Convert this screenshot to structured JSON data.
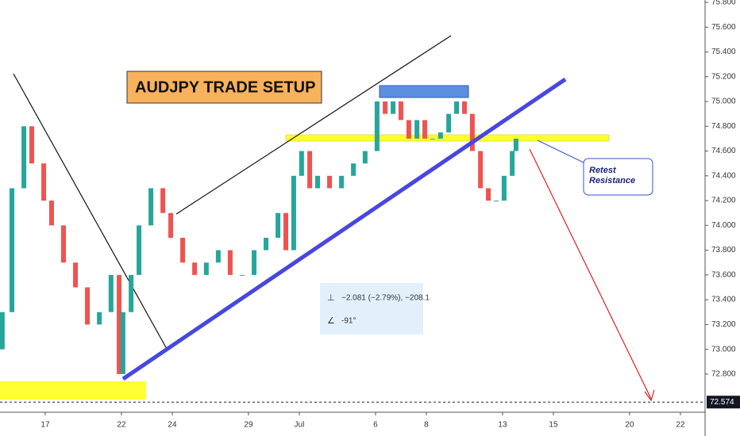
{
  "chart_data": {
    "type": "candlestick",
    "title": "AUDJPY TRADE SETUP",
    "annotations": {
      "callout": "Retest\nResistance",
      "measure_change": "−2.081 (−2.79%), −208.1",
      "measure_angle": "-91°"
    },
    "x": [
      -1.69,
      -1.31,
      -0.84,
      -0.53,
      -0.06,
      0.25,
      0.72,
      1.19,
      1.66,
      2.13,
      2.59,
      2.91,
      3.06,
      3.38,
      3.69,
      4.16,
      4.63,
      4.94,
      5.41,
      5.88,
      6.34,
      6.81,
      7.28,
      7.75,
      8.22,
      8.69,
      9.16,
      9.47,
      9.78,
      10.09,
      10.41,
      10.72,
      11.19,
      11.66,
      12.13,
      12.59,
      13.06,
      13.38,
      13.69,
      14.0,
      14.31,
      14.63,
      14.94,
      15.25,
      15.56,
      15.88,
      16.19,
      16.5,
      16.81,
      17.13,
      17.44,
      17.75,
      18.06,
      18.38,
      18.53
    ],
    "open": [
      73.0,
      73.3,
      74.3,
      74.8,
      74.5,
      74.2,
      74.0,
      73.7,
      73.5,
      73.2,
      73.3,
      73.6,
      72.8,
      73.3,
      73.6,
      74.0,
      74.3,
      74.1,
      73.9,
      73.7,
      73.6,
      73.7,
      73.8,
      73.6,
      73.6,
      73.8,
      73.9,
      74.1,
      73.8,
      74.4,
      74.6,
      74.3,
      74.4,
      74.3,
      74.4,
      74.5,
      74.6,
      75.0,
      74.9,
      75.0,
      74.85,
      74.7,
      74.85,
      74.7,
      74.7,
      74.75,
      74.9,
      75.0,
      74.9,
      74.6,
      74.3,
      74.2,
      74.2,
      74.4,
      74.6
    ],
    "close": [
      73.3,
      74.3,
      74.8,
      74.5,
      74.2,
      74.0,
      73.7,
      73.5,
      73.2,
      73.3,
      73.6,
      72.8,
      73.3,
      73.6,
      74.0,
      74.3,
      74.1,
      73.9,
      73.7,
      73.6,
      73.7,
      73.8,
      73.6,
      73.6,
      73.8,
      73.9,
      74.1,
      73.8,
      74.4,
      74.6,
      74.3,
      74.4,
      74.3,
      74.4,
      74.5,
      74.6,
      75.0,
      74.9,
      75.0,
      74.85,
      74.7,
      74.85,
      74.7,
      74.7,
      74.75,
      74.9,
      75.0,
      74.9,
      74.6,
      74.3,
      74.2,
      74.2,
      74.4,
      74.6,
      74.7
    ],
    "up_color": "#26a69a",
    "down_color": "#ef5350",
    "last_price": {
      "value": 72.574,
      "label": "72.574"
    },
    "xlim": [
      -1.78,
      25.97
    ],
    "xticks": [
      {
        "value": 0,
        "label": "17"
      },
      {
        "value": 3,
        "label": "22"
      },
      {
        "value": 5,
        "label": "24"
      },
      {
        "value": 8,
        "label": "29"
      },
      {
        "value": 10,
        "label": "Jul"
      },
      {
        "value": 13,
        "label": "6"
      },
      {
        "value": 15,
        "label": "8"
      },
      {
        "value": 18,
        "label": "13"
      },
      {
        "value": 20,
        "label": "15"
      },
      {
        "value": 23,
        "label": "20"
      },
      {
        "value": 25,
        "label": "22"
      }
    ],
    "ylim": [
      72.505,
      75.819
    ],
    "yticks": [
      {
        "value": 72.8,
        "label": "72.800"
      },
      {
        "value": 73.0,
        "label": "73.000"
      },
      {
        "value": 73.2,
        "label": "73.200"
      },
      {
        "value": 73.4,
        "label": "73.400"
      },
      {
        "value": 73.6,
        "label": "73.600"
      },
      {
        "value": 73.8,
        "label": "73.800"
      },
      {
        "value": 74.0,
        "label": "74.000"
      },
      {
        "value": 74.2,
        "label": "74.200"
      },
      {
        "value": 74.4,
        "label": "74.400"
      },
      {
        "value": 74.6,
        "label": "74.600"
      },
      {
        "value": 74.8,
        "label": "74.800"
      },
      {
        "value": 75.0,
        "label": "75.000"
      },
      {
        "value": 75.2,
        "label": "75.200"
      },
      {
        "value": 75.4,
        "label": "75.400"
      },
      {
        "value": 75.6,
        "label": "75.600"
      },
      {
        "value": 75.8,
        "label": "75.800"
      }
    ],
    "grid": false
  }
}
